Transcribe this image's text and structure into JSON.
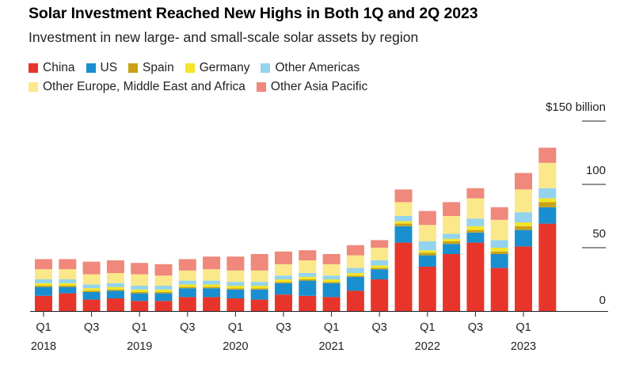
{
  "header": {
    "title": "Solar Investment Reached New Highs in Both 1Q and 2Q 2023",
    "subtitle": "Investment in new large- and small-scale solar assets by region"
  },
  "chart_data": {
    "type": "bar",
    "stacked": true,
    "title": "Solar Investment Reached New Highs in Both 1Q and 2Q 2023",
    "subtitle": "Investment in new large- and small-scale solar assets by region",
    "y_tick_labels": [
      "0",
      "50",
      "100",
      "$150 billion"
    ],
    "y_ticks": [
      0,
      50,
      100,
      150
    ],
    "ylim": [
      0,
      150
    ],
    "grid": false,
    "legend_position": "top-left",
    "categories": [
      "1Q 2018",
      "2Q 2018",
      "3Q 2018",
      "4Q 2018",
      "1Q 2019",
      "2Q 2019",
      "3Q 2019",
      "4Q 2019",
      "1Q 2020",
      "2Q 2020",
      "3Q 2020",
      "4Q 2020",
      "1Q 2021",
      "2Q 2021",
      "3Q 2021",
      "4Q 2021",
      "1Q 2022",
      "2Q 2022",
      "3Q 2022",
      "4Q 2022",
      "1Q 2023",
      "2Q 2023"
    ],
    "x_tick_labels": [
      {
        "quarter": "Q1",
        "year": "2018",
        "index": 0
      },
      {
        "quarter": "Q3",
        "year": "",
        "index": 2
      },
      {
        "quarter": "Q1",
        "year": "2019",
        "index": 4
      },
      {
        "quarter": "Q3",
        "year": "",
        "index": 6
      },
      {
        "quarter": "Q1",
        "year": "2020",
        "index": 8
      },
      {
        "quarter": "Q3",
        "year": "",
        "index": 10
      },
      {
        "quarter": "Q1",
        "year": "2021",
        "index": 12
      },
      {
        "quarter": "Q3",
        "year": "",
        "index": 14
      },
      {
        "quarter": "Q1",
        "year": "2022",
        "index": 16
      },
      {
        "quarter": "Q3",
        "year": "",
        "index": 18
      },
      {
        "quarter": "Q1",
        "year": "2023",
        "index": 20
      }
    ],
    "series": [
      {
        "name": "China",
        "color": "#e8352b",
        "values": [
          12,
          14,
          9,
          10,
          8,
          8,
          11,
          11,
          10,
          9,
          13,
          12,
          11,
          16,
          25,
          54,
          35,
          45,
          54,
          34,
          51,
          69
        ]
      },
      {
        "name": "US",
        "color": "#1a8fd0",
        "values": [
          7,
          5,
          6,
          6,
          6,
          6,
          7,
          7,
          7,
          8,
          9,
          12,
          11,
          11,
          8,
          13,
          9,
          8,
          8,
          11,
          13,
          13
        ]
      },
      {
        "name": "Spain",
        "color": "#c9a215",
        "values": [
          1,
          1,
          1,
          1,
          1,
          1,
          1,
          1,
          1,
          1,
          1,
          1,
          1,
          1,
          1,
          2,
          2,
          2,
          2,
          2,
          3,
          4
        ]
      },
      {
        "name": "Germany",
        "color": "#f3e52a",
        "values": [
          2,
          2,
          2,
          2,
          2,
          2,
          2,
          2,
          2,
          2,
          2,
          2,
          2,
          2,
          2,
          2,
          2,
          2,
          3,
          3,
          3,
          3
        ]
      },
      {
        "name": "Other Americas",
        "color": "#93d3ee",
        "values": [
          3,
          3,
          3,
          3,
          3,
          3,
          3,
          3,
          3,
          3,
          3,
          3,
          3,
          4,
          4,
          4,
          7,
          4,
          6,
          6,
          8,
          8
        ]
      },
      {
        "name": "Other Europe, Middle East and Africa",
        "color": "#fbe88a",
        "values": [
          8,
          8,
          8,
          8,
          9,
          8,
          8,
          9,
          9,
          9,
          9,
          10,
          9,
          10,
          10,
          11,
          13,
          14,
          16,
          16,
          18,
          20
        ]
      },
      {
        "name": "Other Asia Pacific",
        "color": "#f0887c",
        "values": [
          8,
          8,
          10,
          10,
          9,
          9,
          9,
          10,
          11,
          13,
          10,
          8,
          8,
          8,
          6,
          10,
          11,
          11,
          8,
          10,
          13,
          12
        ]
      }
    ]
  }
}
